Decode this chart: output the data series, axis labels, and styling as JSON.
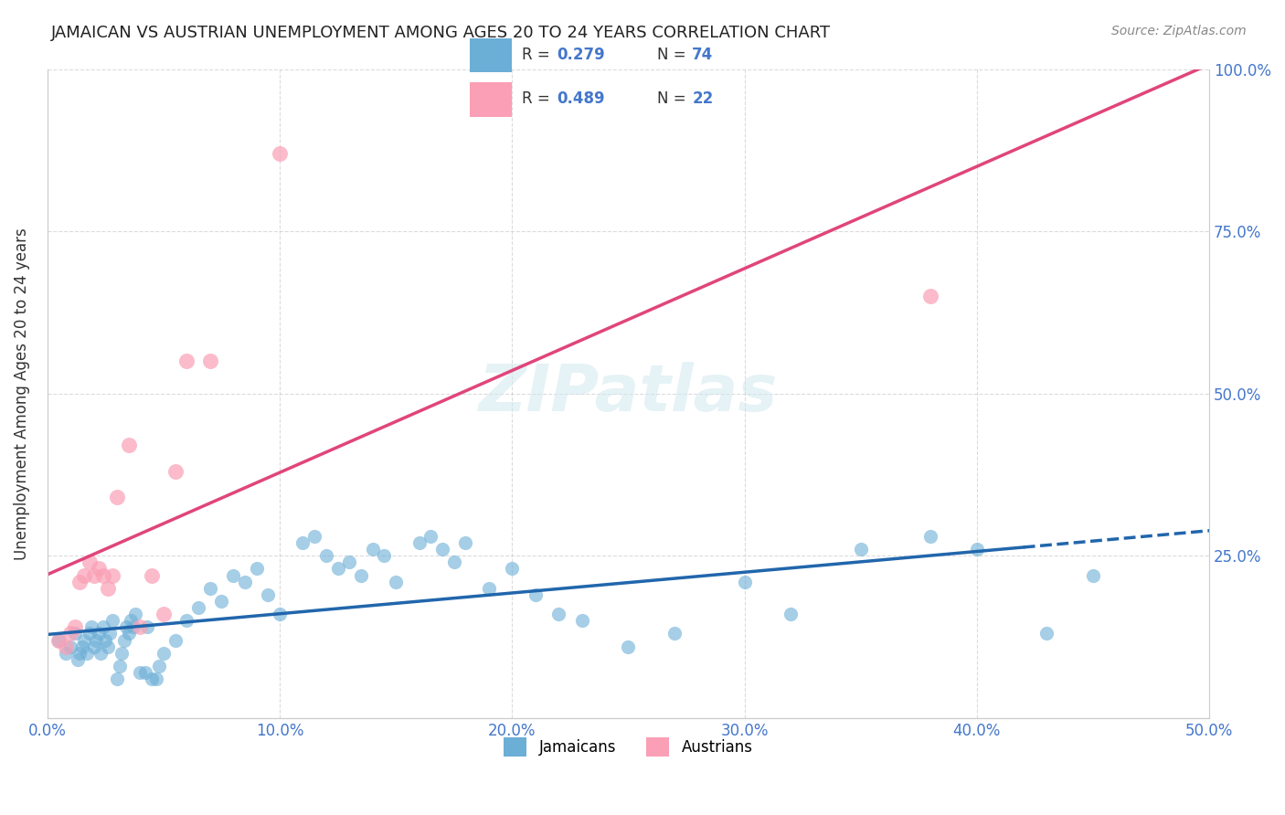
{
  "title": "JAMAICAN VS AUSTRIAN UNEMPLOYMENT AMONG AGES 20 TO 24 YEARS CORRELATION CHART",
  "source": "Source: ZipAtlas.com",
  "xlabel_label": "",
  "ylabel_label": "Unemployment Among Ages 20 to 24 years",
  "xmin": 0.0,
  "xmax": 0.5,
  "ymin": 0.0,
  "ymax": 1.0,
  "xticks": [
    0.0,
    0.1,
    0.2,
    0.3,
    0.4,
    0.5
  ],
  "yticks": [
    0.0,
    0.25,
    0.5,
    0.75,
    1.0
  ],
  "ytick_labels": [
    "",
    "25.0%",
    "50.0%",
    "75.0%",
    "100.0%"
  ],
  "xtick_labels": [
    "0.0%",
    "10.0%",
    "20.0%",
    "30.0%",
    "40.0%",
    "50.0%"
  ],
  "r_jamaican": 0.279,
  "n_jamaican": 74,
  "r_austrian": 0.489,
  "n_austrian": 22,
  "legend_label_1": "Jamaicans",
  "legend_label_2": "Austrians",
  "jamaican_color": "#6baed6",
  "austrian_color": "#fa9fb5",
  "line_jamaican_color": "#2166ac",
  "line_austrian_color": "#e0457b",
  "background_color": "#ffffff",
  "watermark_text": "ZIPatlas",
  "jamaican_points_x": [
    0.005,
    0.008,
    0.01,
    0.012,
    0.013,
    0.014,
    0.015,
    0.016,
    0.017,
    0.018,
    0.019,
    0.02,
    0.021,
    0.022,
    0.023,
    0.024,
    0.025,
    0.026,
    0.027,
    0.028,
    0.03,
    0.031,
    0.032,
    0.033,
    0.034,
    0.035,
    0.036,
    0.037,
    0.038,
    0.04,
    0.042,
    0.043,
    0.045,
    0.047,
    0.048,
    0.05,
    0.055,
    0.06,
    0.065,
    0.07,
    0.075,
    0.08,
    0.085,
    0.09,
    0.095,
    0.1,
    0.11,
    0.115,
    0.12,
    0.125,
    0.13,
    0.135,
    0.14,
    0.145,
    0.15,
    0.16,
    0.165,
    0.17,
    0.175,
    0.18,
    0.19,
    0.2,
    0.21,
    0.22,
    0.23,
    0.25,
    0.27,
    0.3,
    0.32,
    0.35,
    0.38,
    0.4,
    0.43,
    0.45
  ],
  "jamaican_points_y": [
    0.12,
    0.1,
    0.11,
    0.13,
    0.09,
    0.1,
    0.11,
    0.12,
    0.1,
    0.13,
    0.14,
    0.11,
    0.12,
    0.13,
    0.1,
    0.14,
    0.12,
    0.11,
    0.13,
    0.15,
    0.06,
    0.08,
    0.1,
    0.12,
    0.14,
    0.13,
    0.15,
    0.14,
    0.16,
    0.07,
    0.07,
    0.14,
    0.06,
    0.06,
    0.08,
    0.1,
    0.12,
    0.15,
    0.17,
    0.2,
    0.18,
    0.22,
    0.21,
    0.23,
    0.19,
    0.16,
    0.27,
    0.28,
    0.25,
    0.23,
    0.24,
    0.22,
    0.26,
    0.25,
    0.21,
    0.27,
    0.28,
    0.26,
    0.24,
    0.27,
    0.2,
    0.23,
    0.19,
    0.16,
    0.15,
    0.11,
    0.13,
    0.21,
    0.16,
    0.26,
    0.28,
    0.26,
    0.13,
    0.22
  ],
  "austrian_points_x": [
    0.005,
    0.008,
    0.01,
    0.012,
    0.014,
    0.016,
    0.018,
    0.02,
    0.022,
    0.024,
    0.026,
    0.028,
    0.03,
    0.035,
    0.04,
    0.045,
    0.05,
    0.055,
    0.06,
    0.07,
    0.38,
    0.1
  ],
  "austrian_points_y": [
    0.12,
    0.11,
    0.13,
    0.14,
    0.21,
    0.22,
    0.24,
    0.22,
    0.23,
    0.22,
    0.2,
    0.22,
    0.34,
    0.42,
    0.14,
    0.22,
    0.16,
    0.38,
    0.55,
    0.55,
    0.65,
    0.87
  ],
  "grid_color": "#cccccc",
  "axis_color": "#aaaaaa",
  "tick_color_x": "#4477cc",
  "tick_color_y": "#4477cc"
}
